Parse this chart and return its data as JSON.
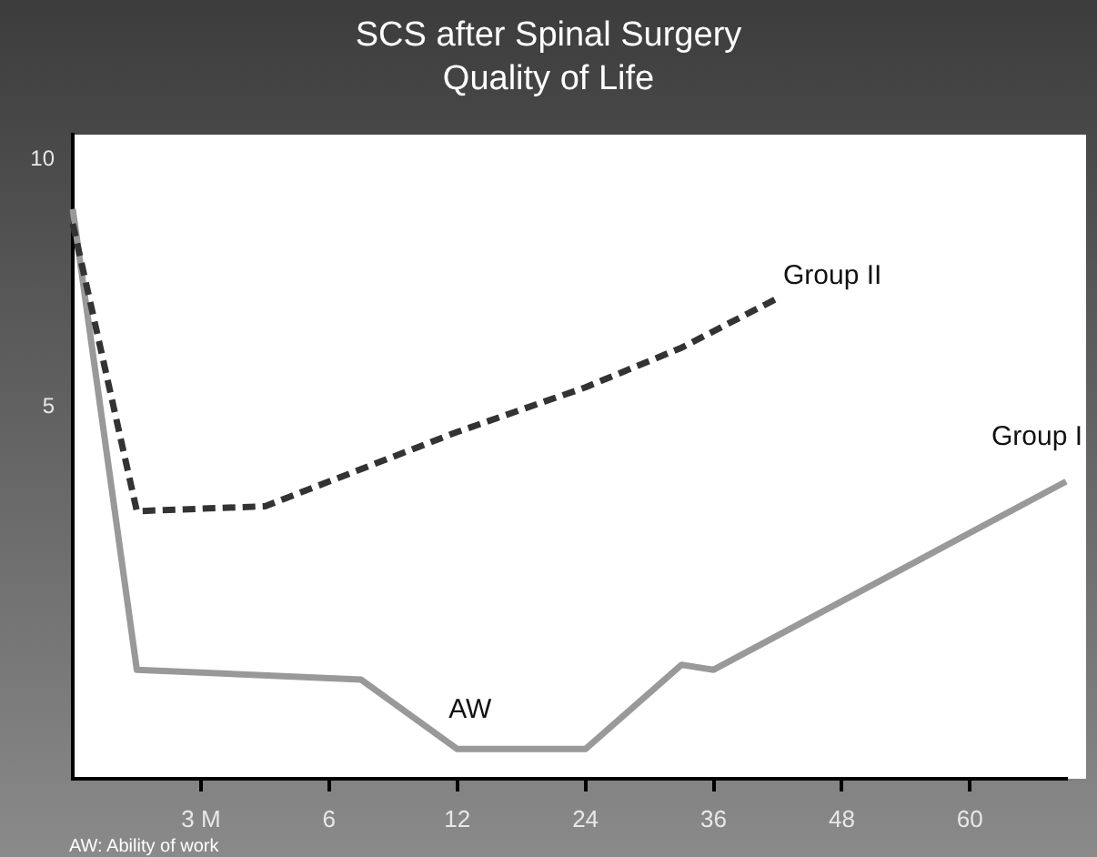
{
  "chart_data": {
    "type": "line",
    "title": "SCS after Spinal Surgery",
    "subtitle": "Quality of Life",
    "categories": [
      null,
      null,
      null,
      null,
      "3 M",
      null,
      null,
      null,
      "6",
      null,
      null,
      null,
      "12",
      null,
      null,
      null,
      "24",
      null,
      null,
      null,
      "36",
      null,
      null,
      null,
      "48",
      null,
      null,
      null,
      "60",
      null,
      null,
      null
    ],
    "ylim": [
      -2.5,
      10.5
    ],
    "yticks": [
      5,
      10
    ],
    "series": [
      {
        "name": "Group II",
        "color": "#333333",
        "line_style": "dashed",
        "values": [
          8.7,
          null,
          2.9,
          null,
          null,
          null,
          3.0,
          null,
          null,
          null,
          null,
          null,
          4.5,
          null,
          null,
          null,
          5.4,
          null,
          null,
          6.2,
          null,
          null,
          7.2,
          null,
          null,
          null,
          null,
          null,
          null,
          null,
          null,
          null
        ]
      },
      {
        "name": "Group I",
        "color": "#999999",
        "line_style": "solid",
        "values": [
          9.0,
          null,
          -0.3,
          null,
          null,
          null,
          null,
          null,
          null,
          -0.5,
          null,
          null,
          -1.9,
          null,
          null,
          null,
          -1.9,
          null,
          null,
          -0.2,
          -0.3,
          null,
          null,
          null,
          null,
          null,
          null,
          null,
          null,
          null,
          null,
          3.5
        ]
      }
    ],
    "annotations": [
      "AW",
      "AW: Ability of work"
    ],
    "grid": false,
    "legend": false,
    "marker": "none"
  }
}
